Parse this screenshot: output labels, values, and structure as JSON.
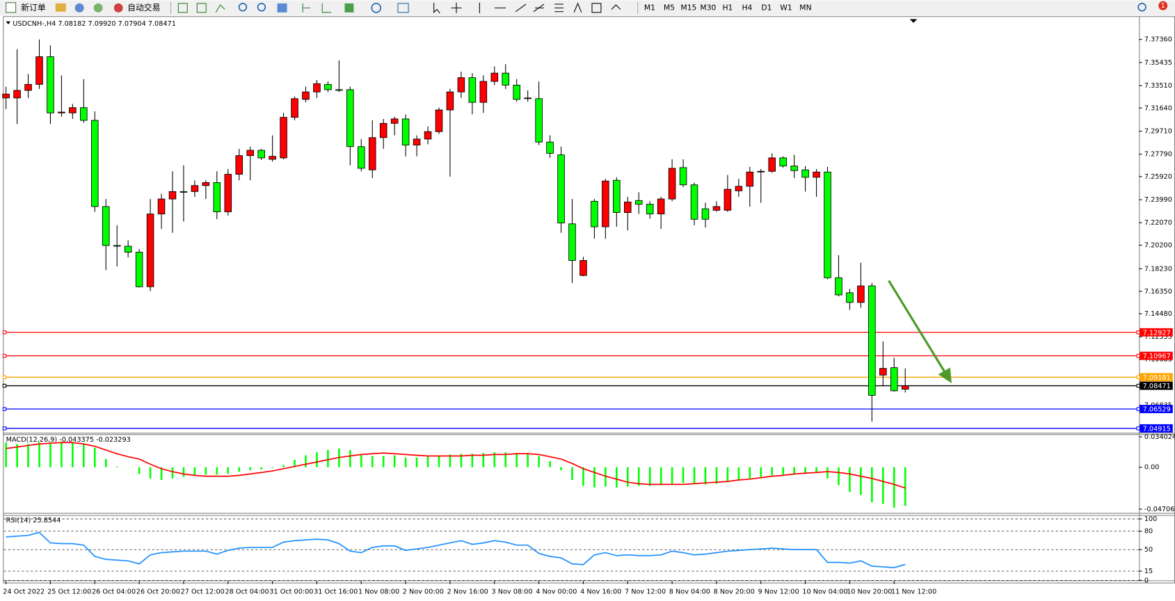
{
  "toolbar": {
    "new_order": "新订单",
    "auto_trade": "自动交易",
    "timeframes": [
      "M1",
      "M5",
      "M15",
      "M30",
      "H1",
      "H4",
      "D1",
      "W1",
      "MN"
    ],
    "notification": 1
  },
  "chart_data": {
    "type": "candlestick",
    "header": "USDCNH-,H4  7.08182 7.09920 7.07904 7.08471",
    "up_color": "#ff0000",
    "down_color": "#00ff00",
    "categories": [
      "24 Oct 2022",
      null,
      null,
      null,
      "25 Oct 12:00",
      null,
      null,
      null,
      "26 Oct 04:00",
      null,
      null,
      null,
      "26 Oct 20:00",
      null,
      null,
      null,
      "27 Oct 12:00",
      null,
      null,
      null,
      "28 Oct 04:00",
      null,
      null,
      null,
      "31 Oct 00:00",
      null,
      null,
      null,
      "31 Oct 16:00",
      null,
      null,
      null,
      "1 Nov 08:00",
      null,
      null,
      null,
      "2 Nov 00:00",
      null,
      null,
      null,
      "2 Nov 16:00",
      null,
      null,
      null,
      "3 Nov 08:00",
      null,
      null,
      null,
      "4 Nov 00:00",
      null,
      null,
      null,
      "4 Nov 16:00",
      null,
      null,
      null,
      "7 Nov 12:00",
      null,
      null,
      null,
      "8 Nov 04:00",
      null,
      null,
      null,
      "8 Nov 20:00",
      null,
      null,
      null,
      "9 Nov 12:00",
      null,
      null,
      null,
      "10 Nov 04:00",
      null,
      null,
      null,
      "10 Nov 20:00",
      null,
      null,
      null,
      "11 Nov 12:00",
      null
    ],
    "ohlc": [
      [
        7.3248,
        7.3342,
        7.3155,
        7.328
      ],
      [
        7.3248,
        7.3655,
        7.303,
        7.3311
      ],
      [
        7.3311,
        7.3448,
        7.3248,
        7.3361
      ],
      [
        7.3361,
        7.3736,
        7.3323,
        7.3592
      ],
      [
        7.3592,
        7.3686,
        7.303,
        7.3123
      ],
      [
        7.3123,
        7.3436,
        7.3092,
        7.313
      ],
      [
        7.3123,
        7.3198,
        7.3073,
        7.3167
      ],
      [
        7.3167,
        7.3405,
        7.3042,
        7.3061
      ],
      [
        7.3061,
        7.3136,
        7.2298,
        7.2342
      ],
      [
        7.2342,
        7.2405,
        7.1811,
        7.2017
      ],
      [
        7.2017,
        7.2186,
        7.1842,
        7.2011
      ],
      [
        7.2011,
        7.2061,
        7.1917,
        7.1961
      ],
      [
        7.1961,
        7.1986,
        7.1667,
        7.1673
      ],
      [
        7.1673,
        7.2405,
        7.1636,
        7.228
      ],
      [
        7.228,
        7.2448,
        7.2155,
        7.2405
      ],
      [
        7.2405,
        7.2636,
        7.2123,
        7.2467
      ],
      [
        7.2467,
        7.2686,
        7.2217,
        7.2461
      ],
      [
        7.2467,
        7.2561,
        7.2423,
        7.2517
      ],
      [
        7.2517,
        7.2561,
        7.2405,
        7.2542
      ],
      [
        7.2542,
        7.2636,
        7.2236,
        7.2298
      ],
      [
        7.2298,
        7.2655,
        7.2267,
        7.2611
      ],
      [
        7.2611,
        7.2823,
        7.2561,
        7.2767
      ],
      [
        7.2767,
        7.2842,
        7.2561,
        7.2811
      ],
      [
        7.2811,
        7.2823,
        7.273,
        7.2748
      ],
      [
        7.2736,
        7.2936,
        7.2717,
        7.2761
      ],
      [
        7.2748,
        7.3123,
        7.2736,
        7.3086
      ],
      [
        7.3086,
        7.3261,
        7.3061,
        7.3242
      ],
      [
        7.3236,
        7.3342,
        7.3211,
        7.3298
      ],
      [
        7.3298,
        7.3398,
        7.3248,
        7.3367
      ],
      [
        7.3361,
        7.3386,
        7.3298,
        7.3317
      ],
      [
        7.3317,
        7.3561,
        7.3298,
        7.3311
      ],
      [
        7.3317,
        7.3342,
        7.2686,
        7.2842
      ],
      [
        7.2842,
        7.2905,
        7.2636,
        7.2661
      ],
      [
        7.2648,
        7.3061,
        7.258,
        7.2917
      ],
      [
        7.2917,
        7.3073,
        7.2823,
        7.3036
      ],
      [
        7.3036,
        7.3092,
        7.2936,
        7.3073
      ],
      [
        7.3073,
        7.3111,
        7.2761,
        7.2855
      ],
      [
        7.2855,
        7.2936,
        7.2761,
        7.2905
      ],
      [
        7.2905,
        7.3011,
        7.2861,
        7.2967
      ],
      [
        7.2967,
        7.3167,
        7.2948,
        7.3148
      ],
      [
        7.3148,
        7.3323,
        7.2592,
        7.3298
      ],
      [
        7.3298,
        7.3467,
        7.3248,
        7.3417
      ],
      [
        7.3417,
        7.3455,
        7.3111,
        7.3211
      ],
      [
        7.3211,
        7.3436,
        7.3123,
        7.3386
      ],
      [
        7.3386,
        7.3511,
        7.3355,
        7.3455
      ],
      [
        7.3455,
        7.353,
        7.3323,
        7.3355
      ],
      [
        7.3355,
        7.3405,
        7.3217,
        7.3236
      ],
      [
        7.3242,
        7.3311,
        7.3217,
        7.3248
      ],
      [
        7.3242,
        7.3386,
        7.2855,
        7.288
      ],
      [
        7.288,
        7.2936,
        7.2748,
        7.2786
      ],
      [
        7.2773,
        7.2842,
        7.2123,
        7.2205
      ],
      [
        7.2198,
        7.2405,
        7.1705,
        7.1892
      ],
      [
        7.1767,
        7.1923,
        7.1761,
        7.1892
      ],
      [
        7.2386,
        7.2405,
        7.2073,
        7.2173
      ],
      [
        7.2173,
        7.2573,
        7.2073,
        7.2555
      ],
      [
        7.2561,
        7.2586,
        7.2173,
        7.2292
      ],
      [
        7.2292,
        7.2423,
        7.2142,
        7.238
      ],
      [
        7.2392,
        7.2461,
        7.228,
        7.2361
      ],
      [
        7.2361,
        7.2386,
        7.2242,
        7.228
      ],
      [
        7.228,
        7.2423,
        7.2155,
        7.2405
      ],
      [
        7.2405,
        7.2736,
        7.2386,
        7.2661
      ],
      [
        7.2667,
        7.2736,
        7.2505,
        7.2523
      ],
      [
        7.2523,
        7.2542,
        7.2186,
        7.2236
      ],
      [
        7.2323,
        7.2373,
        7.2167,
        7.2236
      ],
      [
        7.2311,
        7.2386,
        7.2298,
        7.2342
      ],
      [
        7.2311,
        7.2605,
        7.2298,
        7.2486
      ],
      [
        7.2473,
        7.2573,
        7.2423,
        7.2511
      ],
      [
        7.2511,
        7.2673,
        7.2342,
        7.263
      ],
      [
        7.263,
        7.2655,
        7.2373,
        7.2636
      ],
      [
        7.2636,
        7.2786,
        7.2623,
        7.2748
      ],
      [
        7.2748,
        7.2761,
        7.2667,
        7.268
      ],
      [
        7.268,
        7.2773,
        7.258,
        7.2642
      ],
      [
        7.2648,
        7.268,
        7.2467,
        7.2586
      ],
      [
        7.2586,
        7.2655,
        7.2423,
        7.263
      ],
      [
        7.263,
        7.2673,
        7.1736,
        7.1748
      ],
      [
        7.1748,
        7.1936,
        7.1592,
        7.1605
      ],
      [
        7.1623,
        7.1655,
        7.148,
        7.1542
      ],
      [
        7.1542,
        7.1873,
        7.1498,
        7.168
      ],
      [
        7.168,
        7.1705,
        7.0548,
        7.0767
      ],
      [
        7.0936,
        7.1217,
        7.0842,
        7.0992
      ],
      [
        7.0998,
        7.108,
        7.0798,
        7.0805
      ],
      [
        7.08182,
        7.0992,
        7.07904,
        7.08471
      ]
    ],
    "ylim": [
      7.0455,
      7.3924
    ],
    "yticks": [
      {
        "value": 7.3736,
        "label": "7.37360"
      },
      7.35435,
      {
        "value": 7.3351,
        "label": "7.33510"
      },
      {
        "value": 7.3164,
        "label": "7.31640"
      },
      {
        "value": 7.2971,
        "label": "7.29710"
      },
      {
        "value": 7.2779,
        "label": "7.27790"
      },
      {
        "value": 7.2592,
        "label": "7.25920"
      },
      {
        "value": 7.2399,
        "label": "7.23990"
      },
      {
        "value": 7.2207,
        "label": "7.22070"
      },
      {
        "value": 7.202,
        "label": "7.20200"
      },
      {
        "value": 7.1823,
        "label": "7.18230"
      },
      {
        "value": 7.1635,
        "label": "7.16350"
      },
      {
        "value": 7.1448,
        "label": "7.14480"
      },
      7.12555,
      7.10685,
      7.06835
    ],
    "hlines": [
      {
        "value": 7.12927,
        "color": "#ff0000"
      },
      {
        "value": 7.10967,
        "color": "#ff0000"
      },
      {
        "value": 7.09181,
        "color": "#ffa500"
      },
      {
        "value": 7.08471,
        "color": "#000000"
      },
      {
        "value": 7.06529,
        "color": "#0000ff"
      },
      {
        "value": 7.04915,
        "color": "#0000ff"
      }
    ],
    "macd": {
      "label": "MACD(12,26,9) -0.043375 -0.023293",
      "hist_color": "#00ff00",
      "signal_color": "#ff0000",
      "ylim": [
        -0.0513,
        0.037
      ],
      "yticks": [
        0.034024,
        {
          "value": 0,
          "label": "0.00"
        },
        -0.047061
      ],
      "histogram": [
        0.0277,
        0.0261,
        0.0261,
        0.0277,
        0.0277,
        0.0286,
        0.0277,
        0.0269,
        0.0218,
        0.0092,
        0.0008,
        0.0003,
        -0.0076,
        -0.0126,
        -0.0143,
        -0.0126,
        -0.0109,
        -0.0092,
        -0.0084,
        -0.0084,
        -0.0076,
        -0.005,
        -0.0034,
        -0.0025,
        -0.0008,
        0.0025,
        0.0084,
        0.0134,
        0.0168,
        0.0193,
        0.021,
        0.0193,
        0.0143,
        0.0126,
        0.0126,
        0.0134,
        0.0109,
        0.0109,
        0.0126,
        0.0134,
        0.0143,
        0.0151,
        0.0151,
        0.016,
        0.0168,
        0.0168,
        0.016,
        0.016,
        0.0126,
        0.0067,
        -0.0034,
        -0.0143,
        -0.021,
        -0.0227,
        -0.0218,
        -0.0227,
        -0.0218,
        -0.021,
        -0.021,
        -0.0202,
        -0.0185,
        -0.0176,
        -0.0185,
        -0.0193,
        -0.0185,
        -0.0168,
        -0.0151,
        -0.0126,
        -0.0109,
        -0.0092,
        -0.0084,
        -0.0084,
        -0.0076,
        -0.0059,
        -0.0126,
        -0.0202,
        -0.0277,
        -0.0311,
        -0.0395,
        -0.0412,
        -0.0454,
        -0.043375
      ],
      "signal": [
        0.021,
        0.0227,
        0.0244,
        0.0261,
        0.0269,
        0.0277,
        0.0277,
        0.0261,
        0.0235,
        0.0193,
        0.0151,
        0.0118,
        0.0092,
        0.0034,
        -0.0017,
        -0.005,
        -0.0076,
        -0.0092,
        -0.0101,
        -0.0101,
        -0.0101,
        -0.0092,
        -0.0076,
        -0.0059,
        -0.0042,
        -0.0017,
        0.0008,
        0.0034,
        0.0059,
        0.0084,
        0.0109,
        0.0126,
        0.0143,
        0.0151,
        0.016,
        0.0151,
        0.0143,
        0.0134,
        0.0126,
        0.0126,
        0.0126,
        0.0126,
        0.0134,
        0.0134,
        0.0143,
        0.0143,
        0.0151,
        0.0151,
        0.0143,
        0.0118,
        0.0092,
        0.0042,
        -0.0017,
        -0.0059,
        -0.0101,
        -0.0134,
        -0.0168,
        -0.0185,
        -0.0193,
        -0.0193,
        -0.0193,
        -0.0193,
        -0.0185,
        -0.0176,
        -0.0168,
        -0.016,
        -0.0143,
        -0.0134,
        -0.0118,
        -0.0101,
        -0.0092,
        -0.0076,
        -0.0067,
        -0.0059,
        -0.005,
        -0.0059,
        -0.0076,
        -0.0101,
        -0.0126,
        -0.016,
        -0.0193,
        -0.023293
      ]
    },
    "rsi": {
      "label": "RSI(14) 25.8544",
      "color": "#1e90ff",
      "ylim": [
        0,
        100
      ],
      "yticks": [
        0,
        15,
        50,
        80,
        100
      ],
      "values": [
        70.7,
        72.0,
        73.2,
        78.0,
        61.0,
        59.8,
        59.8,
        57.3,
        39.0,
        34.1,
        32.9,
        31.7,
        26.8,
        41.5,
        45.1,
        46.3,
        47.6,
        47.6,
        47.6,
        42.7,
        48.8,
        52.4,
        53.7,
        53.7,
        53.7,
        62.2,
        64.6,
        65.9,
        67.1,
        65.9,
        59.8,
        47.6,
        45.1,
        53.7,
        56.1,
        56.1,
        48.8,
        51.2,
        53.7,
        57.3,
        61.0,
        64.6,
        58.5,
        61.0,
        64.6,
        62.2,
        57.3,
        57.3,
        43.9,
        39.0,
        36.6,
        26.8,
        25.6,
        41.5,
        45.1,
        40.2,
        41.5,
        40.2,
        40.2,
        41.5,
        47.6,
        45.1,
        41.5,
        42.7,
        45.1,
        47.6,
        48.8,
        50.0,
        51.2,
        52.4,
        51.2,
        50.0,
        50.0,
        50.0,
        29.3,
        29.3,
        28.0,
        31.7,
        23.2,
        22.0,
        20.7,
        25.8544
      ]
    }
  }
}
